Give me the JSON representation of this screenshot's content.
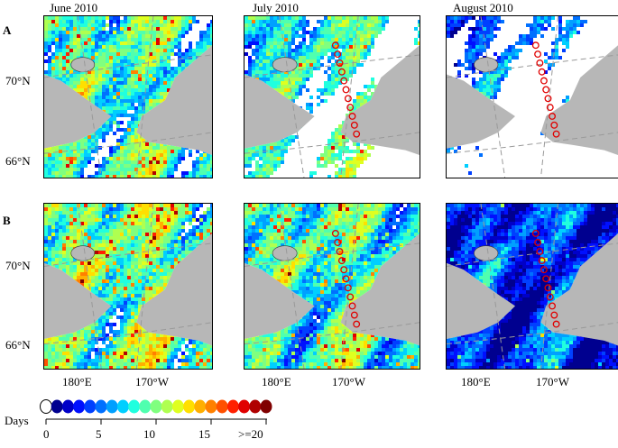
{
  "columns": [
    "June 2010",
    "July 2010",
    "August 2010"
  ],
  "rows": [
    "A",
    "B"
  ],
  "lat_labels": [
    "70°N",
    "66°N"
  ],
  "lon_labels": [
    "180°E",
    "170°W"
  ],
  "legend": {
    "title": "Days",
    "ticks": [
      "0",
      "5",
      "10",
      "15",
      ">=20"
    ],
    "colors": [
      "#ffffff",
      "#00008f",
      "#0000c8",
      "#0010ff",
      "#0040ff",
      "#0070ff",
      "#00a0ff",
      "#00cfff",
      "#20ffdf",
      "#50ffaf",
      "#80ff7f",
      "#afff50",
      "#dfff20",
      "#ffdf00",
      "#ffaf00",
      "#ff8000",
      "#ff5000",
      "#ff2000",
      "#e00000",
      "#b00000",
      "#800000"
    ]
  },
  "colors": {
    "land": "#b7b7b7",
    "no_data": "#ffffff",
    "station_marker": "#e00000",
    "grid": "#999999"
  },
  "panels": [
    {
      "id": "A-June",
      "row": "A",
      "col": "June 2010",
      "coverage": 0.7,
      "mean": 8,
      "hot": 0.35,
      "stations": false
    },
    {
      "id": "A-July",
      "row": "A",
      "col": "July 2010",
      "coverage": 0.38,
      "mean": 7,
      "hot": 0.15,
      "stations": true
    },
    {
      "id": "A-August",
      "row": "A",
      "col": "August 2010",
      "coverage": 0.12,
      "mean": 3,
      "hot": 0.0,
      "stations": true
    },
    {
      "id": "B-June",
      "row": "B",
      "col": "June 2010",
      "coverage": 0.8,
      "mean": 9,
      "hot": 0.45,
      "stations": false
    },
    {
      "id": "B-July",
      "row": "B",
      "col": "July 2010",
      "coverage": 0.88,
      "mean": 8,
      "hot": 0.35,
      "stations": true
    },
    {
      "id": "B-August",
      "row": "B",
      "col": "August 2010",
      "coverage": 0.98,
      "mean": 3,
      "hot": 0.05,
      "stations": true
    }
  ]
}
